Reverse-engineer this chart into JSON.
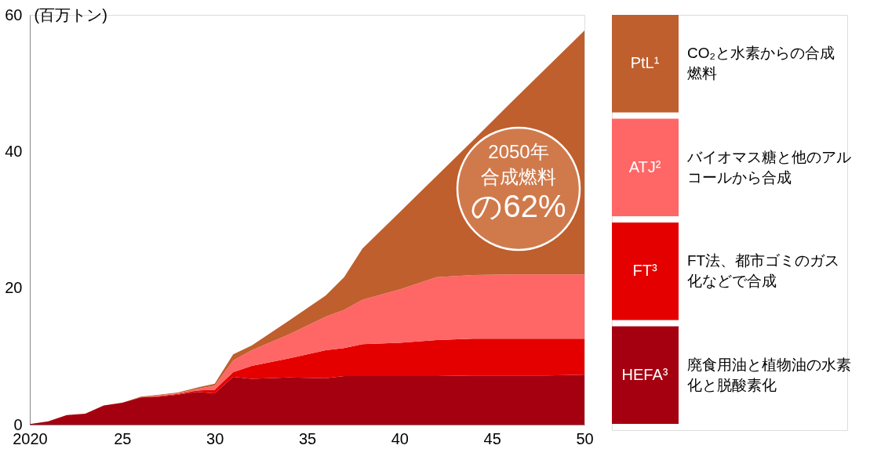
{
  "chart_data": {
    "type": "area",
    "stacked": true,
    "ylabel": "(百万トン)",
    "x": [
      2020,
      2021,
      2022,
      2023,
      2024,
      2025,
      2026,
      2027,
      2028,
      2029,
      2030,
      2031,
      2032,
      2034,
      2036,
      2037,
      2038,
      2040,
      2042,
      2044,
      2046,
      2048,
      2050
    ],
    "series": [
      {
        "name": "HEFA³",
        "color": "#a50010",
        "values": [
          0.1,
          0.5,
          1.4,
          1.6,
          2.8,
          3.2,
          4.0,
          4.1,
          4.4,
          4.8,
          4.6,
          7.0,
          6.7,
          6.9,
          6.8,
          7.1,
          7.1,
          7.1,
          7.1,
          7.2,
          7.2,
          7.2,
          7.3
        ]
      },
      {
        "name": "FT³",
        "color": "#e50000",
        "values": [
          0,
          0,
          0,
          0,
          0,
          0,
          0,
          0.1,
          0.1,
          0.2,
          0.5,
          0.7,
          1.9,
          2.8,
          4.1,
          4.1,
          4.7,
          4.9,
          5.3,
          5.4,
          5.4,
          5.4,
          5.3
        ]
      },
      {
        "name": "ATJ²",
        "color": "#ff6666",
        "values": [
          0,
          0,
          0,
          0,
          0,
          0,
          0,
          0.1,
          0.1,
          0.2,
          0.6,
          1.7,
          2.3,
          3.5,
          4.9,
          5.6,
          6.5,
          7.8,
          9.2,
          9.3,
          9.4,
          9.4,
          9.4
        ]
      },
      {
        "name": "PtL¹",
        "color": "#bf5f2e",
        "values": [
          0,
          0,
          0,
          0,
          0,
          0,
          0.1,
          0.1,
          0.1,
          0.2,
          0.3,
          0.9,
          0.7,
          2.0,
          3.1,
          4.8,
          7.5,
          11.3,
          14.8,
          19.8,
          25.1,
          30.4,
          35.7
        ]
      }
    ],
    "xlim": [
      2020,
      2050
    ],
    "xticks": [
      {
        "value": 2020,
        "label": "2020"
      },
      {
        "value": 2025,
        "label": "25"
      },
      {
        "value": 2030,
        "label": "30"
      },
      {
        "value": 2035,
        "label": "35"
      },
      {
        "value": 2040,
        "label": "40"
      },
      {
        "value": 2045,
        "label": "45"
      },
      {
        "value": 2050,
        "label": "50"
      }
    ],
    "ylim": [
      0,
      60
    ],
    "yticks": [
      0,
      20,
      40,
      60
    ],
    "grid": false,
    "legend": "right",
    "annotations": [
      "2050年合成燃料の62%",
      "CO₂と水素からの合成燃料",
      "バイオマス糖と他のアルコールから合成",
      "FT法、都市ゴミのガス化などで合成",
      "廃食用油と植物油の水素化と脱酸素化"
    ]
  }
}
